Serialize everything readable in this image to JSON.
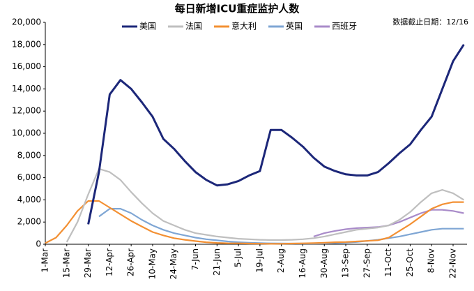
{
  "chart_data": {
    "type": "line",
    "title": "每日新增ICU重症监护人数",
    "note": "数据截止日期：12/16",
    "categories": [
      "1-Mar",
      null,
      "15-Mar",
      null,
      "29-Mar",
      null,
      "12-Apr",
      null,
      "26-Apr",
      null,
      "10-May",
      null,
      "24-May",
      null,
      "7-Jun",
      null,
      "21-Jun",
      null,
      "5-Jul",
      null,
      "19-Jul",
      null,
      "2-Aug",
      null,
      "16-Aug",
      null,
      "30-Aug",
      null,
      "13-Sep",
      null,
      "27-Sep",
      null,
      "11-Oct",
      null,
      "25-Oct",
      null,
      "8-Nov",
      null,
      "22-Nov",
      null
    ],
    "series": [
      {
        "name": "美国",
        "color": "#1c2779",
        "values": [
          null,
          null,
          null,
          null,
          1800,
          6500,
          13500,
          14800,
          14000,
          12800,
          11500,
          9500,
          8600,
          7500,
          6500,
          5800,
          5300,
          5400,
          5700,
          6200,
          6600,
          10300,
          10300,
          9600,
          8800,
          7800,
          7000,
          6600,
          6300,
          6200,
          6200,
          6500,
          7300,
          8200,
          9000,
          10300,
          11500,
          14000,
          16500,
          18000
        ]
      },
      {
        "name": "法国",
        "color": "#bfbfbf",
        "values": [
          null,
          null,
          200,
          2000,
          4500,
          6800,
          6500,
          5800,
          4700,
          3700,
          2800,
          2100,
          1700,
          1300,
          1000,
          850,
          700,
          600,
          500,
          450,
          400,
          380,
          380,
          400,
          450,
          550,
          700,
          900,
          1100,
          1300,
          1400,
          1500,
          1700,
          2200,
          2900,
          3800,
          4600,
          4900,
          4600,
          4000
        ]
      },
      {
        "name": "意大利",
        "color": "#f39033",
        "values": [
          100,
          600,
          1700,
          3000,
          3900,
          3900,
          3300,
          2700,
          2100,
          1600,
          1100,
          800,
          550,
          400,
          280,
          180,
          120,
          90,
          80,
          60,
          50,
          40,
          45,
          60,
          80,
          100,
          130,
          180,
          200,
          250,
          300,
          360,
          600,
          1200,
          1800,
          2500,
          3200,
          3600,
          3800,
          3800
        ]
      },
      {
        "name": "英国",
        "color": "#7fa6d4",
        "values": [
          null,
          null,
          null,
          null,
          null,
          2500,
          3200,
          3200,
          2800,
          2200,
          1700,
          1300,
          1000,
          800,
          600,
          450,
          350,
          250,
          180,
          130,
          100,
          80,
          70,
          60,
          60,
          60,
          70,
          100,
          150,
          200,
          300,
          400,
          550,
          700,
          900,
          1100,
          1300,
          1400,
          1400,
          1400
        ]
      },
      {
        "name": "西班牙",
        "color": "#a98bc9",
        "values": [
          null,
          null,
          null,
          null,
          null,
          null,
          null,
          null,
          null,
          null,
          null,
          null,
          null,
          null,
          null,
          null,
          null,
          null,
          null,
          null,
          null,
          null,
          null,
          null,
          null,
          700,
          1000,
          1200,
          1350,
          1450,
          1500,
          1550,
          1700,
          2000,
          2400,
          2800,
          3100,
          3100,
          3000,
          2800
        ]
      }
    ],
    "ylim": [
      0,
      20000
    ],
    "yticks": [
      0,
      {
        "value": 2000,
        "label": "2,000"
      },
      {
        "value": 4000,
        "label": "4,000"
      },
      {
        "value": 6000,
        "label": "6,000"
      },
      {
        "value": 8000,
        "label": "8,000"
      },
      {
        "value": 10000,
        "label": "10,000"
      },
      {
        "value": 12000,
        "label": "12,000"
      },
      {
        "value": 14000,
        "label": "14,000"
      },
      {
        "value": 16000,
        "label": "16,000"
      },
      {
        "value": 18000,
        "label": "18,000"
      },
      {
        "value": 20000,
        "label": "20,000"
      }
    ],
    "grid": false,
    "legend": "top"
  }
}
